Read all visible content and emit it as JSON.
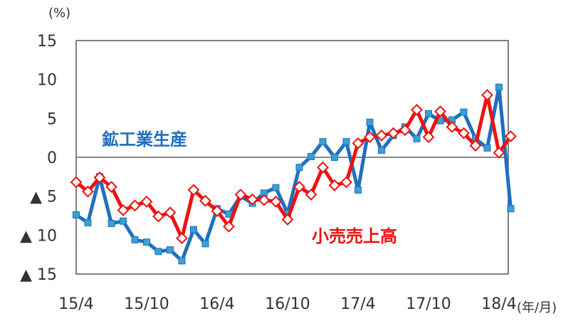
{
  "chart_data": {
    "type": "line",
    "y_unit": "(%)",
    "x_unit": "(年/月)",
    "ylim": [
      -15,
      15
    ],
    "y_ticks": [
      {
        "value": 15,
        "label": "15"
      },
      {
        "value": 10,
        "label": "10"
      },
      {
        "value": 5,
        "label": "5"
      },
      {
        "value": 0,
        "label": "0"
      },
      {
        "value": -5,
        "label": "▲ 5"
      },
      {
        "value": -10,
        "label": "▲ 10"
      },
      {
        "value": -15,
        "label": "▲ 15"
      }
    ],
    "x_ticks": [
      {
        "index": 0,
        "label": "15/4"
      },
      {
        "index": 6,
        "label": "15/10"
      },
      {
        "index": 12,
        "label": "16/4"
      },
      {
        "index": 18,
        "label": "16/10"
      },
      {
        "index": 24,
        "label": "17/4"
      },
      {
        "index": 30,
        "label": "17/10"
      },
      {
        "index": 36,
        "label": "18/4"
      }
    ],
    "grid": false,
    "zero_line": true,
    "series": [
      {
        "name": "鉱工業生産",
        "color": "#1f6fbf",
        "marker": "square",
        "marker_color": "#3aa0d0",
        "values": [
          -7.4,
          -8.4,
          -2.5,
          -8.5,
          -8.2,
          -10.6,
          -10.9,
          -12.1,
          -11.9,
          -13.3,
          -9.3,
          -11.1,
          -6.6,
          -7.3,
          -5.0,
          -5.9,
          -4.6,
          -3.9,
          -7.2,
          -1.3,
          0.1,
          2.0,
          0.0,
          2.0,
          -4.2,
          4.5,
          0.9,
          2.8,
          3.9,
          2.4,
          5.6,
          4.7,
          4.8,
          5.8,
          2.4,
          1.2,
          9.0,
          -6.6
        ]
      },
      {
        "name": "小売売上高",
        "color": "#ee1111",
        "marker": "diamond",
        "values": [
          -3.2,
          -4.4,
          -2.6,
          -3.8,
          -6.8,
          -6.2,
          -5.7,
          -7.6,
          -7.1,
          -10.4,
          -4.2,
          -5.6,
          -6.9,
          -8.9,
          -4.8,
          -5.4,
          -5.5,
          -5.7,
          -8.0,
          -3.8,
          -4.8,
          -1.3,
          -3.6,
          -3.2,
          1.8,
          2.6,
          2.8,
          3.1,
          3.5,
          6.1,
          2.6,
          5.9,
          3.9,
          3.1,
          1.5,
          8.0,
          0.6,
          2.7
        ]
      }
    ]
  }
}
